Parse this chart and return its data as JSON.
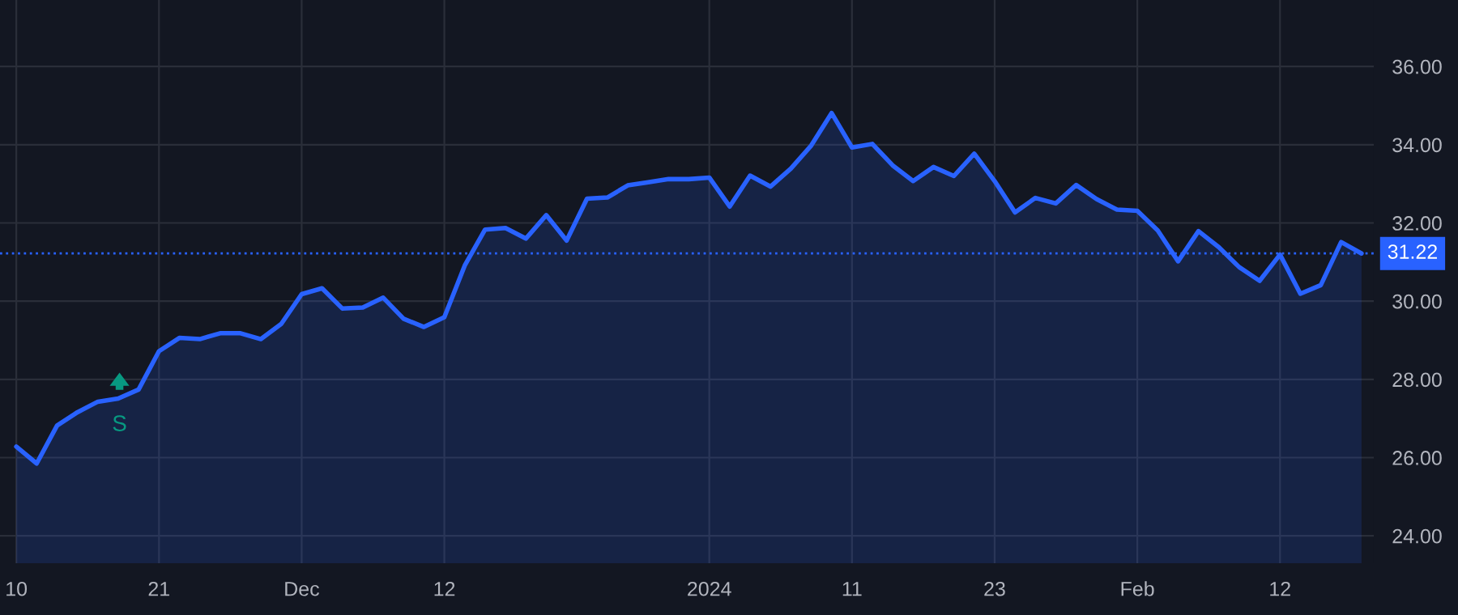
{
  "chart_data": {
    "type": "area",
    "categories": [
      "10",
      null,
      null,
      null,
      null,
      null,
      null,
      "21",
      null,
      null,
      null,
      null,
      null,
      null,
      "Dec",
      null,
      null,
      null,
      null,
      null,
      null,
      "12",
      null,
      null,
      null,
      null,
      null,
      null,
      null,
      null,
      null,
      null,
      null,
      null,
      "2024",
      null,
      null,
      null,
      null,
      null,
      null,
      "11",
      null,
      null,
      null,
      null,
      null,
      null,
      "23",
      null,
      null,
      null,
      null,
      null,
      null,
      "Feb",
      null,
      null,
      null,
      null,
      null,
      null,
      "12",
      null,
      null,
      null,
      null
    ],
    "series": [
      {
        "color": "#2962ff",
        "values": [
          26.28,
          25.85,
          26.82,
          27.16,
          27.43,
          27.51,
          27.74,
          28.72,
          29.06,
          29.03,
          29.18,
          29.18,
          29.03,
          29.42,
          30.18,
          30.33,
          29.81,
          29.84,
          30.09,
          29.55,
          29.34,
          29.59,
          30.91,
          31.83,
          31.87,
          31.6,
          32.2,
          31.55,
          32.62,
          32.65,
          32.96,
          33.04,
          33.12,
          33.12,
          33.16,
          32.42,
          33.21,
          32.93,
          33.39,
          33.98,
          34.81,
          33.93,
          34.02,
          33.47,
          33.07,
          33.43,
          33.2,
          33.77,
          33.07,
          32.27,
          32.64,
          32.5,
          32.97,
          32.61,
          32.34,
          32.31,
          31.81,
          31.02,
          31.79,
          31.38,
          30.87,
          30.52,
          31.19,
          30.19,
          30.41,
          31.51,
          31.22
        ]
      }
    ],
    "ylim": [
      23.3,
      37.7
    ],
    "yticks": [
      {
        "value": 24,
        "label": "24.00"
      },
      {
        "value": 26,
        "label": "26.00"
      },
      {
        "value": 28,
        "label": "28.00"
      },
      {
        "value": 30,
        "label": "30.00"
      },
      {
        "value": 32,
        "label": "32.00"
      },
      {
        "value": 34,
        "label": "34.00"
      },
      {
        "value": 36,
        "label": "36.00"
      }
    ],
    "ref_lines": [
      {
        "axis": "y",
        "value": 31.22,
        "label": "31.22",
        "color": "#2962ff",
        "line_style": "dotted"
      }
    ],
    "annotations": [
      "S"
    ],
    "grid": true,
    "legend": false,
    "marker": "none",
    "line_style": "solid"
  }
}
